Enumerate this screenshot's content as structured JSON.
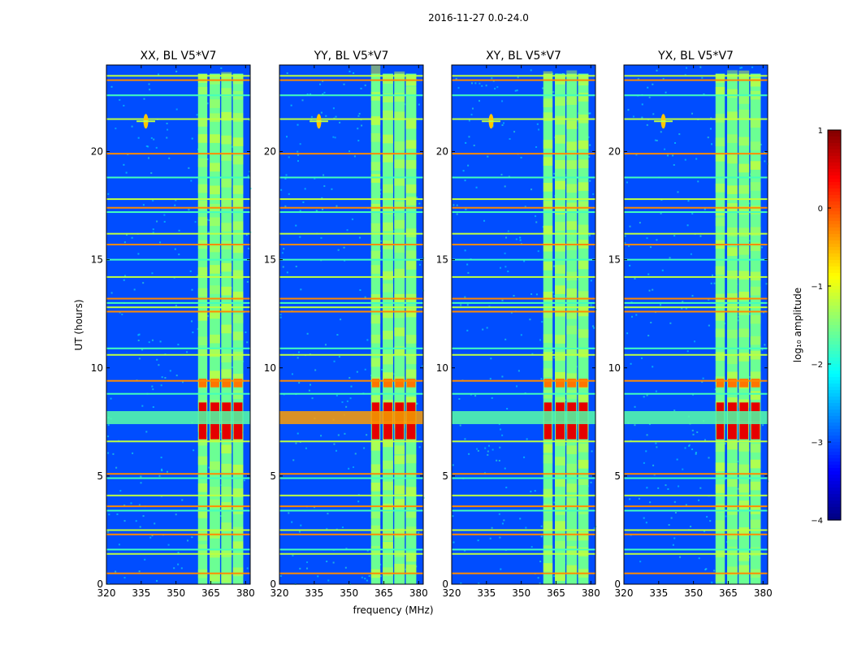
{
  "chart_data": {
    "type": "heatmap",
    "suptitle": "2016-11-27 0.0-24.0",
    "xlabel": "frequency (MHz)",
    "ylabel": "UT (hours)",
    "xlim": [
      320,
      382
    ],
    "ylim": [
      0,
      24
    ],
    "xticks": [
      320,
      335,
      350,
      365,
      380
    ],
    "yticks": [
      0,
      5,
      10,
      15,
      20
    ],
    "panels": [
      {
        "title": "XX, BL V5*V7"
      },
      {
        "title": "YY, BL V5*V7"
      },
      {
        "title": "XY, BL V5*V7"
      },
      {
        "title": "YX, BL V5*V7"
      }
    ],
    "colorbar": {
      "label": "log₁₀ amplitude",
      "range": [
        -4,
        1
      ],
      "ticks": [
        "1",
        "0",
        "−1",
        "−2",
        "−3",
        "−4"
      ],
      "colormap": "jet"
    },
    "features": {
      "background_level": -3.0,
      "signal_bands_mhz": [
        [
          359.5,
          363.5
        ],
        [
          364.5,
          369
        ],
        [
          369.5,
          374
        ],
        [
          374.5,
          379
        ]
      ],
      "signal_level": -1.6,
      "strong_interval_ut": [
        6.7,
        8.4
      ],
      "strong_level": 0.5,
      "rfi_lines_ut": [
        0.5,
        1.4,
        1.6,
        2.3,
        2.5,
        3.4,
        3.6,
        4.1,
        4.9,
        5.1,
        6.6,
        8.8,
        9.4,
        10.6,
        10.9,
        12.6,
        12.8,
        13.0,
        13.2,
        14.2,
        15.0,
        15.7,
        16.2,
        17.2,
        17.4,
        17.8,
        18.8,
        19.9,
        21.5,
        22.6,
        23.3,
        23.5
      ]
    }
  }
}
